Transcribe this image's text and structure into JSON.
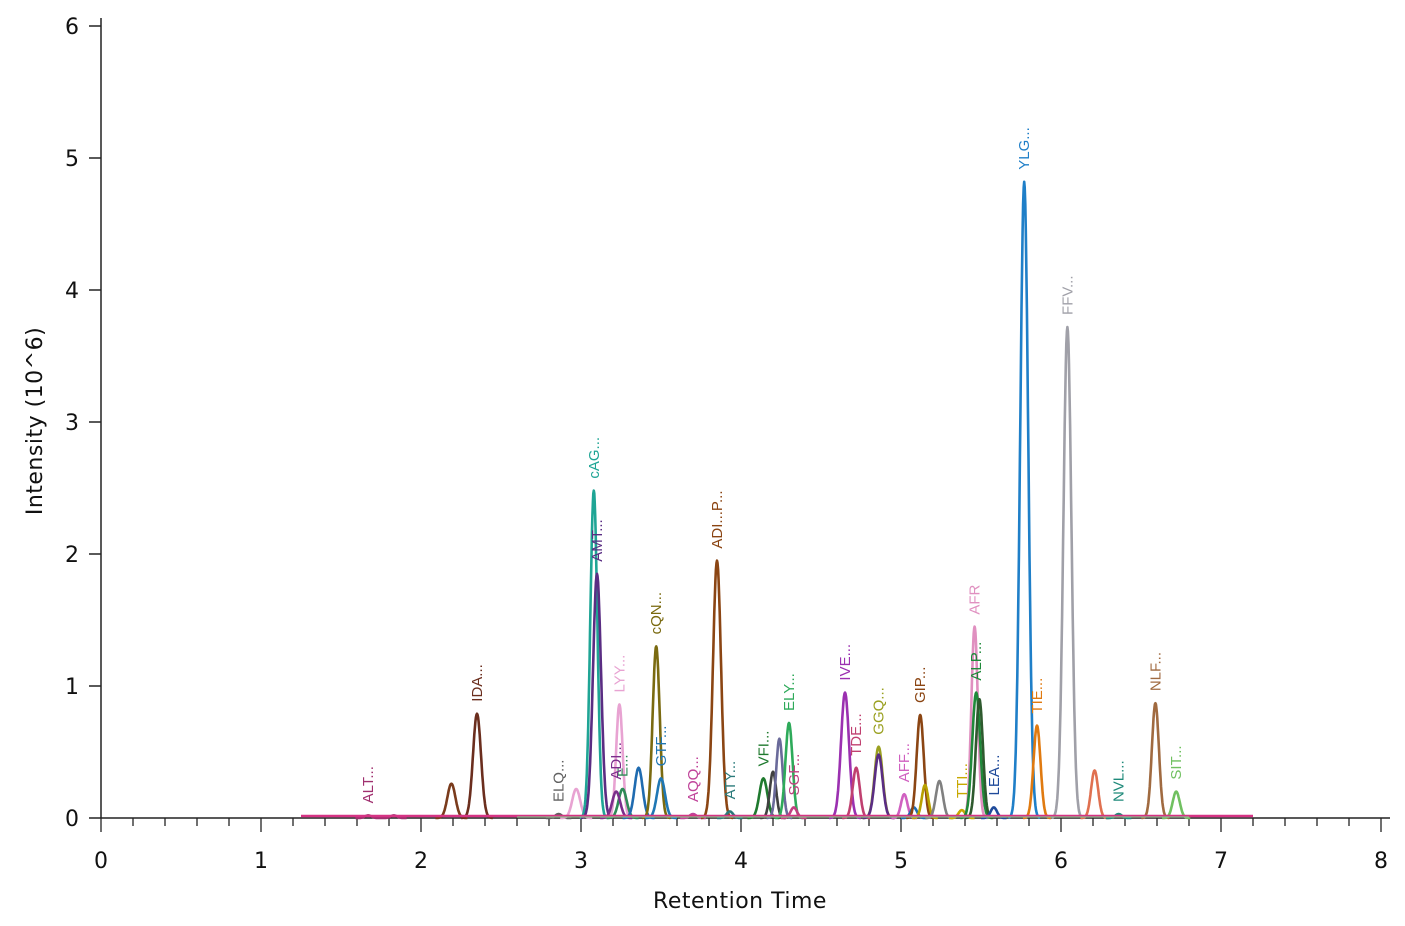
{
  "chart_data": {
    "type": "line",
    "title": "",
    "xlabel": "Retention Time",
    "ylabel": "Intensity (10^6)",
    "xlim": [
      0,
      8
    ],
    "ylim": [
      0,
      6
    ],
    "x_ticks": [
      0,
      1,
      2,
      3,
      4,
      5,
      6,
      7,
      8
    ],
    "y_ticks": [
      0,
      1,
      2,
      3,
      4,
      5,
      6
    ],
    "grid": false,
    "legend": "none",
    "baseline": {
      "x_start": 1.25,
      "x_end": 7.2,
      "color": "#d63384"
    },
    "peaks": [
      {
        "label": "ALT...",
        "x": 1.67,
        "height": 0.02,
        "width": 0.02,
        "color": "#a0306f"
      },
      {
        "label": "",
        "x": 1.83,
        "height": 0.02,
        "width": 0.02,
        "color": "#a0306f"
      },
      {
        "label": "",
        "x": 2.19,
        "height": 0.26,
        "width": 0.025,
        "color": "#7a3b1c"
      },
      {
        "label": "IDA...",
        "x": 2.35,
        "height": 0.79,
        "width": 0.025,
        "color": "#6b2e1e"
      },
      {
        "label": "ELQ...",
        "x": 2.86,
        "height": 0.03,
        "width": 0.02,
        "color": "#606060"
      },
      {
        "label": "",
        "x": 2.97,
        "height": 0.22,
        "width": 0.025,
        "color": "#e8a3d2"
      },
      {
        "label": "cAG...",
        "x": 3.08,
        "height": 2.48,
        "width": 0.022,
        "color": "#1fa595"
      },
      {
        "label": "AMT...",
        "x": 3.1,
        "height": 1.85,
        "width": 0.025,
        "color": "#5a2d83"
      },
      {
        "label": "LYY...",
        "x": 3.24,
        "height": 0.86,
        "width": 0.02,
        "color": "#e8a3d2"
      },
      {
        "label": "E...",
        "x": 3.26,
        "height": 0.22,
        "width": 0.025,
        "color": "#2e8b57"
      },
      {
        "label": "ADI...",
        "x": 3.22,
        "height": 0.2,
        "width": 0.025,
        "color": "#7b2e8b"
      },
      {
        "label": "",
        "x": 3.36,
        "height": 0.38,
        "width": 0.025,
        "color": "#1f6bb0"
      },
      {
        "label": "cQN...",
        "x": 3.47,
        "height": 1.3,
        "width": 0.022,
        "color": "#7a6a10"
      },
      {
        "label": "GTF...",
        "x": 3.5,
        "height": 0.3,
        "width": 0.025,
        "color": "#1f77b4"
      },
      {
        "label": "AQQ...",
        "x": 3.7,
        "height": 0.03,
        "width": 0.02,
        "color": "#c0449a"
      },
      {
        "label": "ADI...P...",
        "x": 3.85,
        "height": 1.95,
        "width": 0.025,
        "color": "#8b4513"
      },
      {
        "label": "ATY...",
        "x": 3.93,
        "height": 0.05,
        "width": 0.02,
        "color": "#2a7a7a"
      },
      {
        "label": "VFI...",
        "x": 4.14,
        "height": 0.3,
        "width": 0.025,
        "color": "#1f7a2e"
      },
      {
        "label": "",
        "x": 4.2,
        "height": 0.35,
        "width": 0.02,
        "color": "#404040"
      },
      {
        "label": "",
        "x": 4.24,
        "height": 0.6,
        "width": 0.02,
        "color": "#6a6a9a"
      },
      {
        "label": "ELY...",
        "x": 4.3,
        "height": 0.72,
        "width": 0.022,
        "color": "#2eaa5a"
      },
      {
        "label": "SGF...",
        "x": 4.33,
        "height": 0.08,
        "width": 0.02,
        "color": "#c04080"
      },
      {
        "label": "IVE...",
        "x": 4.65,
        "height": 0.95,
        "width": 0.025,
        "color": "#9b30b0"
      },
      {
        "label": "TDE...",
        "x": 4.72,
        "height": 0.38,
        "width": 0.022,
        "color": "#c04070"
      },
      {
        "label": "GGQ...",
        "x": 4.86,
        "height": 0.54,
        "width": 0.025,
        "color": "#9aa020"
      },
      {
        "label": "",
        "x": 4.86,
        "height": 0.48,
        "width": 0.025,
        "color": "#5a2d83"
      },
      {
        "label": "AFF...",
        "x": 5.02,
        "height": 0.18,
        "width": 0.02,
        "color": "#d060c0"
      },
      {
        "label": "",
        "x": 5.08,
        "height": 0.08,
        "width": 0.02,
        "color": "#1f6bb0"
      },
      {
        "label": "GIP...",
        "x": 5.12,
        "height": 0.78,
        "width": 0.022,
        "color": "#8b4513"
      },
      {
        "label": "",
        "x": 5.15,
        "height": 0.25,
        "width": 0.02,
        "color": "#b8a000"
      },
      {
        "label": "",
        "x": 5.24,
        "height": 0.28,
        "width": 0.022,
        "color": "#808080"
      },
      {
        "label": "TTI...",
        "x": 5.38,
        "height": 0.06,
        "width": 0.02,
        "color": "#c8a800"
      },
      {
        "label": "AFR",
        "x": 5.46,
        "height": 1.45,
        "width": 0.02,
        "color": "#e090c0"
      },
      {
        "label": "ALP...",
        "x": 5.47,
        "height": 0.95,
        "width": 0.025,
        "color": "#1f8a3a"
      },
      {
        "label": "",
        "x": 5.49,
        "height": 0.9,
        "width": 0.022,
        "color": "#2e5a2e"
      },
      {
        "label": "LEA...",
        "x": 5.58,
        "height": 0.08,
        "width": 0.02,
        "color": "#1f4a9a"
      },
      {
        "label": "YLG...",
        "x": 5.77,
        "height": 4.82,
        "width": 0.025,
        "color": "#1f7fc8"
      },
      {
        "label": "TIE...",
        "x": 5.85,
        "height": 0.7,
        "width": 0.022,
        "color": "#e07a10"
      },
      {
        "label": "FFV...",
        "x": 6.04,
        "height": 3.72,
        "width": 0.025,
        "color": "#a0a0a8"
      },
      {
        "label": "",
        "x": 6.21,
        "height": 0.36,
        "width": 0.022,
        "color": "#e07050"
      },
      {
        "label": "NVL...",
        "x": 6.36,
        "height": 0.03,
        "width": 0.02,
        "color": "#1f8a7a"
      },
      {
        "label": "NLF...",
        "x": 6.59,
        "height": 0.87,
        "width": 0.022,
        "color": "#a06a40"
      },
      {
        "label": "SIT...",
        "x": 6.72,
        "height": 0.2,
        "width": 0.022,
        "color": "#70c060"
      }
    ]
  }
}
